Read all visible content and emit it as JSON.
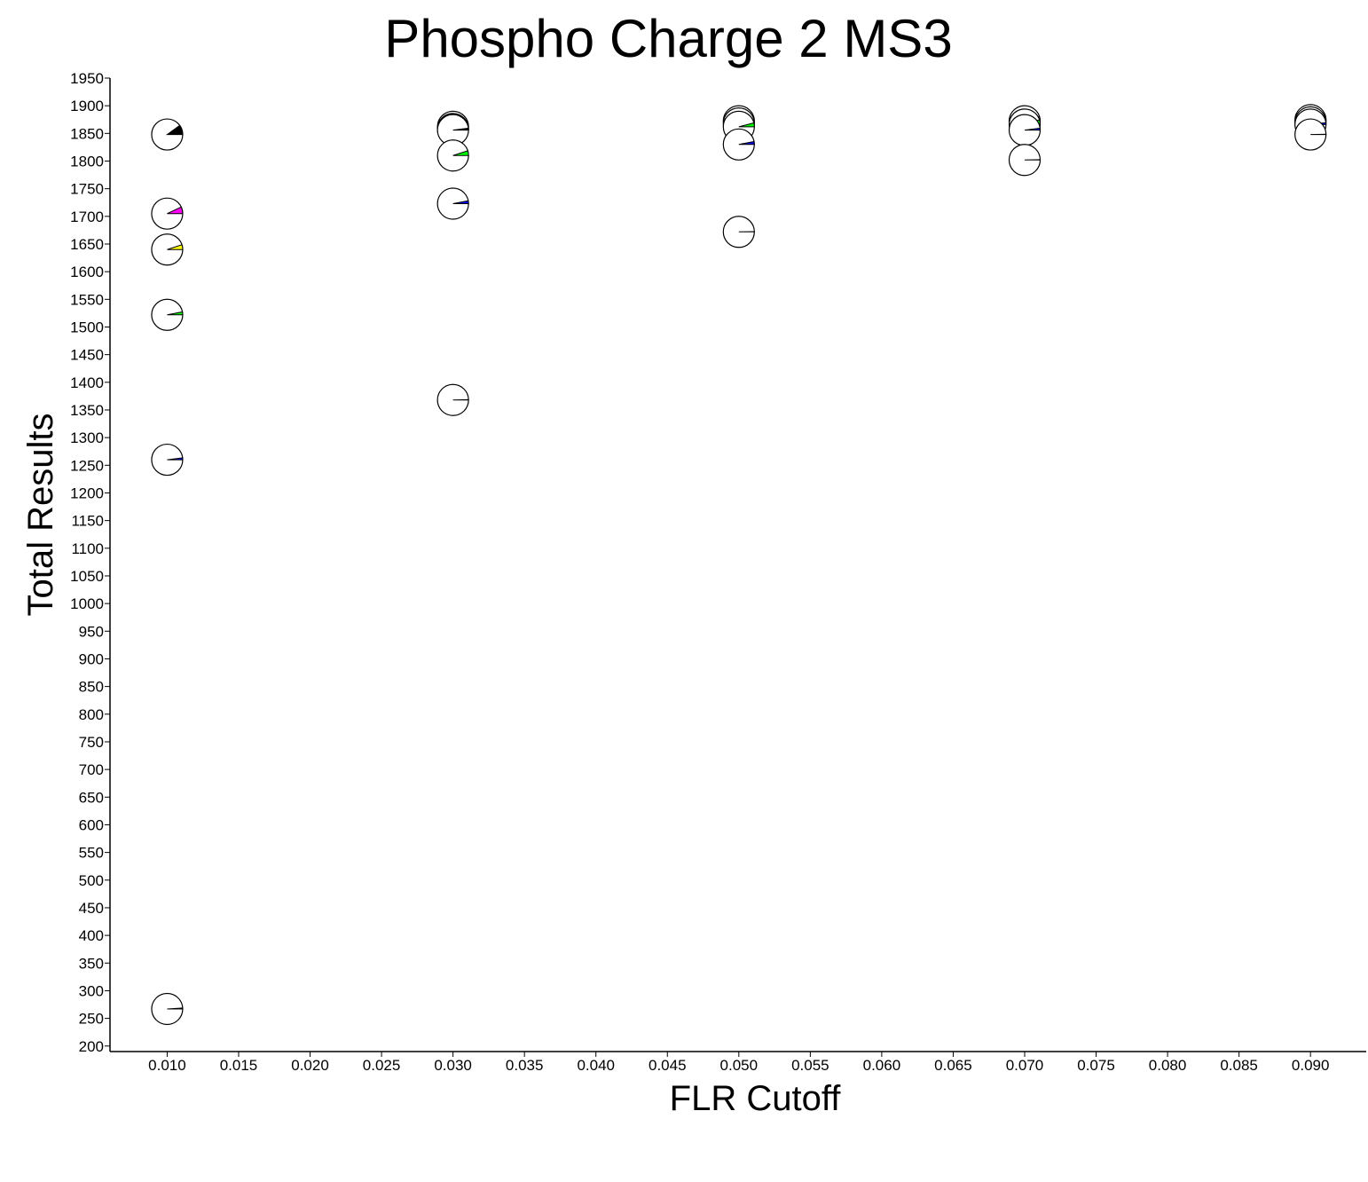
{
  "chart_data": {
    "type": "scatter",
    "title": "Phospho Charge 2 MS3",
    "xlabel": "FLR Cutoff",
    "ylabel": "Total Results",
    "xlim": [
      0.006,
      0.0939
    ],
    "ylim": [
      190,
      1950
    ],
    "x_ticks": [
      "0.010",
      "0.015",
      "0.020",
      "0.025",
      "0.030",
      "0.035",
      "0.040",
      "0.045",
      "0.050",
      "0.055",
      "0.060",
      "0.065",
      "0.070",
      "0.075",
      "0.080",
      "0.085",
      "0.090"
    ],
    "y_ticks": [
      "200",
      "250",
      "300",
      "350",
      "400",
      "450",
      "500",
      "550",
      "600",
      "650",
      "700",
      "750",
      "800",
      "850",
      "900",
      "950",
      "1000",
      "1050",
      "1100",
      "1150",
      "1200",
      "1250",
      "1300",
      "1350",
      "1400",
      "1450",
      "1500",
      "1550",
      "1600",
      "1650",
      "1700",
      "1750",
      "1800",
      "1850",
      "1900",
      "1950"
    ],
    "grid": false,
    "legend": "none",
    "marker": "pie",
    "points": [
      {
        "x": 0.01,
        "y": 1848,
        "color": "#000000",
        "slice": 0.1
      },
      {
        "x": 0.01,
        "y": 1705,
        "color": "#ff00ff",
        "slice": 0.07
      },
      {
        "x": 0.01,
        "y": 1640,
        "color": "#ffff00",
        "slice": 0.05
      },
      {
        "x": 0.01,
        "y": 1522,
        "color": "#00ff00",
        "slice": 0.03
      },
      {
        "x": 0.01,
        "y": 1260,
        "color": "#0000ff",
        "slice": 0.02
      },
      {
        "x": 0.01,
        "y": 267,
        "color": "#800000",
        "slice": 0.01
      },
      {
        "x": 0.03,
        "y": 1862,
        "color": "#000000",
        "slice": 0.05
      },
      {
        "x": 0.03,
        "y": 1858,
        "color": "#ff00ff",
        "slice": 0.07
      },
      {
        "x": 0.03,
        "y": 1856,
        "color": "#000000",
        "slice": 0.02
      },
      {
        "x": 0.03,
        "y": 1810,
        "color": "#00ff00",
        "slice": 0.05
      },
      {
        "x": 0.03,
        "y": 1723,
        "color": "#0000ff",
        "slice": 0.03
      },
      {
        "x": 0.03,
        "y": 1368,
        "color": "#000000",
        "slice": 0.003
      },
      {
        "x": 0.05,
        "y": 1872,
        "color": "#ff8000",
        "slice": 0.05
      },
      {
        "x": 0.05,
        "y": 1868,
        "color": "#000000",
        "slice": 0.03
      },
      {
        "x": 0.05,
        "y": 1862,
        "color": "#00ff00",
        "slice": 0.04
      },
      {
        "x": 0.05,
        "y": 1830,
        "color": "#0000ff",
        "slice": 0.03
      },
      {
        "x": 0.05,
        "y": 1672,
        "color": "#000000",
        "slice": 0.003
      },
      {
        "x": 0.07,
        "y": 1872,
        "color": "#ff00ff",
        "slice": 0.05
      },
      {
        "x": 0.07,
        "y": 1866,
        "color": "#00ff00",
        "slice": 0.05
      },
      {
        "x": 0.07,
        "y": 1856,
        "color": "#0000ff",
        "slice": 0.02
      },
      {
        "x": 0.07,
        "y": 1802,
        "color": "#000000",
        "slice": 0.003
      },
      {
        "x": 0.09,
        "y": 1874,
        "color": "#ff00ff",
        "slice": 0.05
      },
      {
        "x": 0.09,
        "y": 1870,
        "color": "#00ff00",
        "slice": 0.05
      },
      {
        "x": 0.09,
        "y": 1866,
        "color": "#0000ff",
        "slice": 0.02
      },
      {
        "x": 0.09,
        "y": 1848,
        "color": "#000000",
        "slice": 0.003
      }
    ]
  }
}
